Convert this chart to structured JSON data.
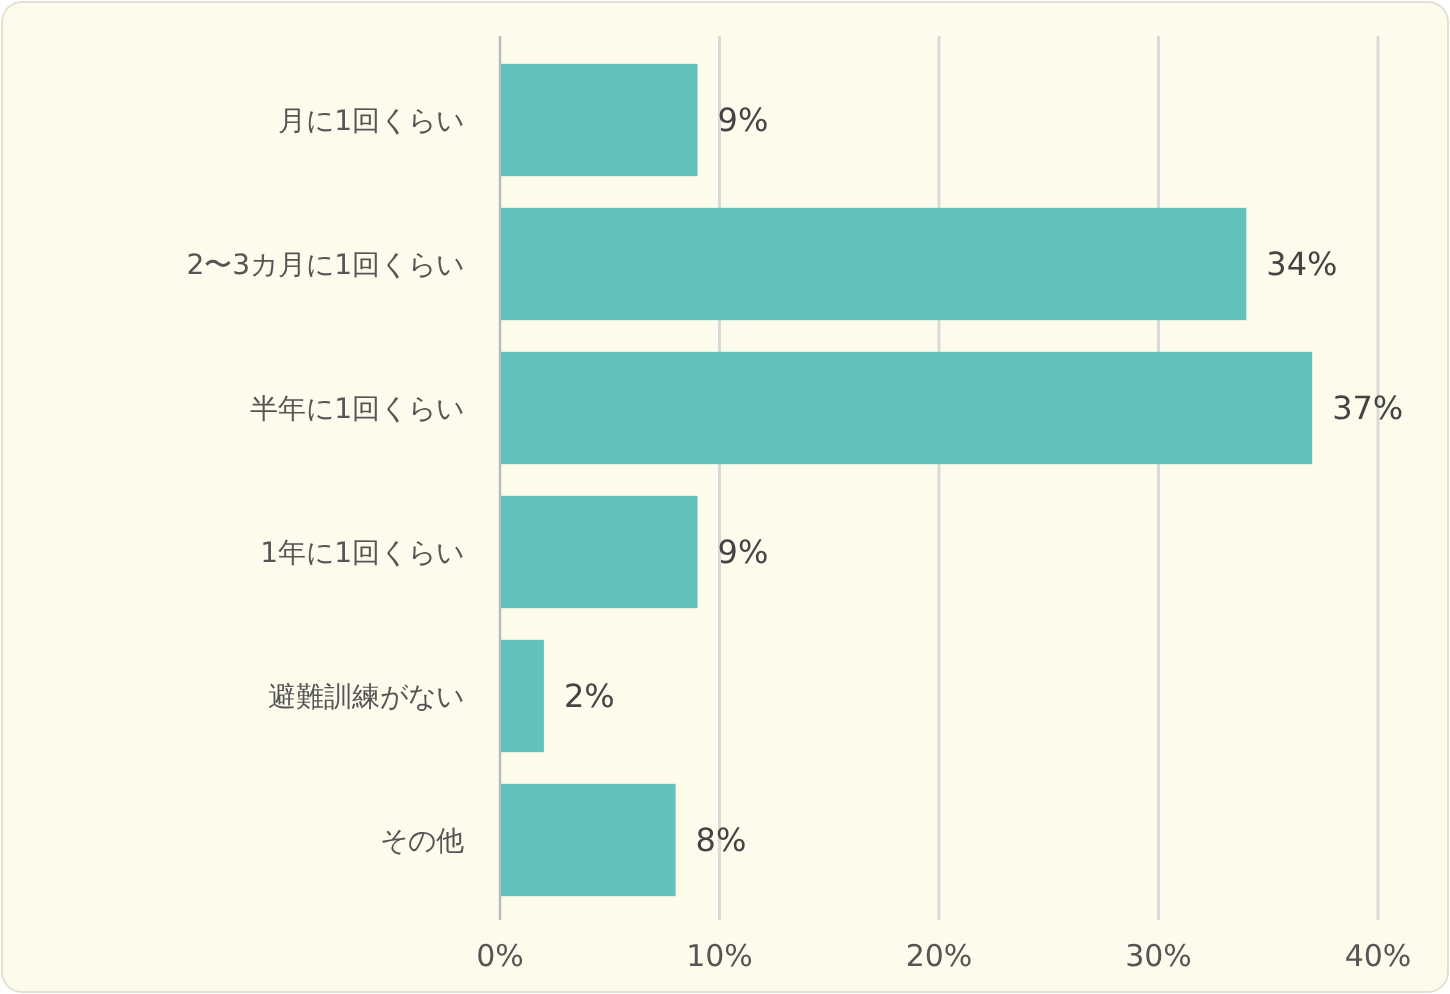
{
  "chart_data": {
    "type": "bar",
    "orientation": "horizontal",
    "categories": [
      "月に1回くらい",
      "2〜3カ月に1回くらい",
      "半年に1回くらい",
      "1年に1回くらい",
      "避難訓練がない",
      "その他"
    ],
    "values": [
      9,
      34,
      37,
      9,
      2,
      8
    ],
    "color": "#62c1bb",
    "xlim": [
      0,
      40
    ],
    "xticks": [
      {
        "value": 0,
        "label": "0%"
      },
      {
        "value": 10,
        "label": "10%"
      },
      {
        "value": 20,
        "label": "20%"
      },
      {
        "value": 30,
        "label": "30%"
      },
      {
        "value": 40,
        "label": "40%"
      }
    ],
    "grid": "x",
    "value_labels": [
      "9%",
      "34%",
      "37%",
      "9%",
      "2%",
      "8%"
    ]
  }
}
